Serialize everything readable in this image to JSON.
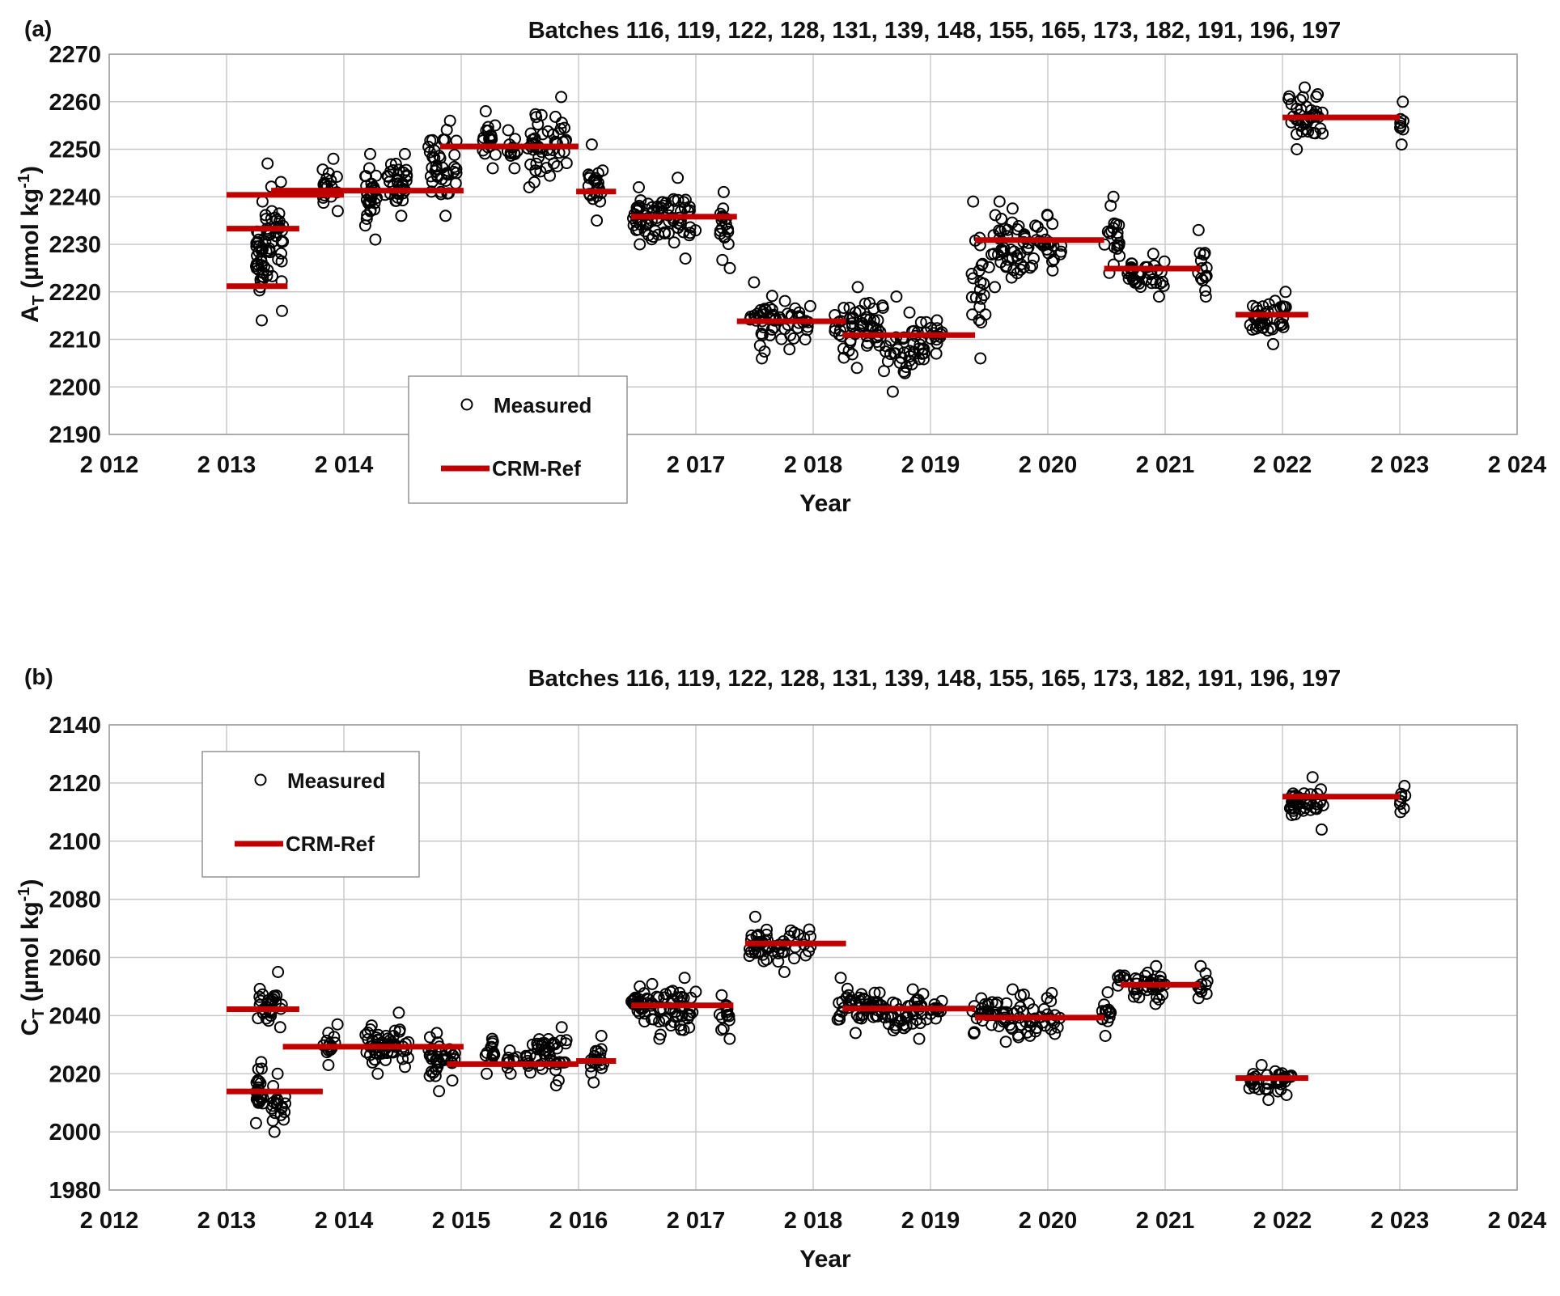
{
  "chart_data": [
    {
      "panel_label": "(a)",
      "type": "scatter",
      "title": "Batches 116, 119, 122, 128, 131, 139, 148, 155, 165, 173, 182, 191, 196, 197",
      "xlabel": "Year",
      "ylabel": "A",
      "ylabel_sub": "T",
      "ylabel_unit": " (µmol kg",
      "ylabel_sup": "-1",
      "ylabel_close": ")",
      "xlim": [
        2012,
        2024
      ],
      "ylim": [
        2190,
        2270
      ],
      "xticks": [
        2012,
        2013,
        2014,
        2015,
        2016,
        2017,
        2018,
        2019,
        2020,
        2021,
        2022,
        2023,
        2024
      ],
      "xtick_labels": [
        "2 012",
        "2 013",
        "2 014",
        "2 015",
        "2 016",
        "2 017",
        "2 018",
        "2 019",
        "2 020",
        "2 021",
        "2 022",
        "2 023",
        "2 024"
      ],
      "yticks": [
        2190,
        2200,
        2210,
        2220,
        2230,
        2240,
        2250,
        2260,
        2270
      ],
      "grid": true,
      "legend": {
        "position": "center-left",
        "items": [
          "Measured",
          "CRM-Ref"
        ]
      },
      "crm_ref": [
        {
          "x": [
            2013.0,
            2014.0
          ],
          "y": 2240.4
        },
        {
          "x": [
            2013.0,
            2013.62
          ],
          "y": 2233.3
        },
        {
          "x": [
            2013.0,
            2013.52
          ],
          "y": 2221.2
        },
        {
          "x": [
            2013.38,
            2015.02
          ],
          "y": 2241.3
        },
        {
          "x": [
            2014.82,
            2016.0
          ],
          "y": 2250.6
        },
        {
          "x": [
            2015.98,
            2016.32
          ],
          "y": 2241.1
        },
        {
          "x": [
            2016.45,
            2017.35
          ],
          "y": 2235.8
        },
        {
          "x": [
            2017.35,
            2018.28
          ],
          "y": 2213.8
        },
        {
          "x": [
            2018.25,
            2019.38
          ],
          "y": 2210.9
        },
        {
          "x": [
            2019.38,
            2020.48
          ],
          "y": 2230.9
        },
        {
          "x": [
            2020.48,
            2021.3
          ],
          "y": 2224.9
        },
        {
          "x": [
            2021.6,
            2022.22
          ],
          "y": 2215.2
        },
        {
          "x": [
            2022.0,
            2023.0
          ],
          "y": 2256.7
        }
      ],
      "measured_clusters": [
        {
          "x": [
            2013.25,
            2013.32
          ],
          "y": [
            2214,
            2239
          ],
          "n": 30
        },
        {
          "x": [
            2013.32,
            2013.48
          ],
          "y": [
            2216,
            2247
          ],
          "n": 40
        },
        {
          "x": [
            2013.82,
            2013.95
          ],
          "y": [
            2237,
            2248
          ],
          "n": 18
        },
        {
          "x": [
            2014.18,
            2014.28
          ],
          "y": [
            2231,
            2249
          ],
          "n": 30
        },
        {
          "x": [
            2014.35,
            2014.55
          ],
          "y": [
            2236,
            2249
          ],
          "n": 35
        },
        {
          "x": [
            2014.72,
            2014.96
          ],
          "y": [
            2236,
            2256
          ],
          "n": 40
        },
        {
          "x": [
            2015.18,
            2015.3
          ],
          "y": [
            2246,
            2258
          ],
          "n": 18
        },
        {
          "x": [
            2015.38,
            2015.48
          ],
          "y": [
            2246,
            2254
          ],
          "n": 12
        },
        {
          "x": [
            2015.55,
            2015.9
          ],
          "y": [
            2242,
            2261
          ],
          "n": 50
        },
        {
          "x": [
            2016.08,
            2016.22
          ],
          "y": [
            2235,
            2251
          ],
          "n": 22
        },
        {
          "x": [
            2016.45,
            2016.6
          ],
          "y": [
            2230,
            2242
          ],
          "n": 25
        },
        {
          "x": [
            2016.62,
            2017.0
          ],
          "y": [
            2227,
            2244
          ],
          "n": 50
        },
        {
          "x": [
            2017.2,
            2017.3
          ],
          "y": [
            2225,
            2241
          ],
          "n": 18
        },
        {
          "x": [
            2017.45,
            2017.85
          ],
          "y": [
            2206,
            2222
          ],
          "n": 45
        },
        {
          "x": [
            2017.85,
            2017.98
          ],
          "y": [
            2210,
            2217
          ],
          "n": 14
        },
        {
          "x": [
            2018.18,
            2018.6
          ],
          "y": [
            2204,
            2221
          ],
          "n": 55
        },
        {
          "x": [
            2018.6,
            2018.98
          ],
          "y": [
            2199,
            2219
          ],
          "n": 45
        },
        {
          "x": [
            2019.0,
            2019.1
          ],
          "y": [
            2207,
            2214
          ],
          "n": 12
        },
        {
          "x": [
            2019.35,
            2019.48
          ],
          "y": [
            2206,
            2239
          ],
          "n": 22
        },
        {
          "x": [
            2019.48,
            2020.12
          ],
          "y": [
            2221,
            2239
          ],
          "n": 75
        },
        {
          "x": [
            2020.45,
            2020.62
          ],
          "y": [
            2224,
            2240
          ],
          "n": 20
        },
        {
          "x": [
            2020.65,
            2021.0
          ],
          "y": [
            2219,
            2228
          ],
          "n": 40
        },
        {
          "x": [
            2021.28,
            2021.36
          ],
          "y": [
            2219,
            2233
          ],
          "n": 14
        },
        {
          "x": [
            2021.7,
            2022.05
          ],
          "y": [
            2209,
            2220
          ],
          "n": 40
        },
        {
          "x": [
            2022.05,
            2022.35
          ],
          "y": [
            2250,
            2263
          ],
          "n": 40
        },
        {
          "x": [
            2023.0,
            2023.05
          ],
          "y": [
            2251,
            2260
          ],
          "n": 8
        }
      ]
    },
    {
      "panel_label": "(b)",
      "type": "scatter",
      "title": "Batches 116, 119, 122, 128, 131, 139, 148, 155, 165, 173, 182, 191, 196, 197",
      "xlabel": "Year",
      "ylabel": "C",
      "ylabel_sub": "T",
      "ylabel_unit": " (µmol kg",
      "ylabel_sup": "-1",
      "ylabel_close": ")",
      "xlim": [
        2012,
        2024
      ],
      "ylim": [
        1980,
        2140
      ],
      "xticks": [
        2012,
        2013,
        2014,
        2015,
        2016,
        2017,
        2018,
        2019,
        2020,
        2021,
        2022,
        2023,
        2024
      ],
      "xtick_labels": [
        "2 012",
        "2 013",
        "2 014",
        "2 015",
        "2 016",
        "2 017",
        "2 018",
        "2 019",
        "2 020",
        "2 021",
        "2 022",
        "2 023",
        "2 024"
      ],
      "yticks": [
        1980,
        2000,
        2020,
        2040,
        2060,
        2080,
        2100,
        2120,
        2140
      ],
      "grid": true,
      "legend": {
        "position": "top-left",
        "items": [
          "Measured",
          "CRM-Ref"
        ]
      },
      "crm_ref": [
        {
          "x": [
            2013.0,
            2013.62
          ],
          "y": 2042.2
        },
        {
          "x": [
            2013.0,
            2013.82
          ],
          "y": 2013.9
        },
        {
          "x": [
            2013.48,
            2015.02
          ],
          "y": 2029.3
        },
        {
          "x": [
            2014.88,
            2016.0
          ],
          "y": 2023.3
        },
        {
          "x": [
            2015.98,
            2016.32
          ],
          "y": 2024.4
        },
        {
          "x": [
            2016.45,
            2017.32
          ],
          "y": 2043.5
        },
        {
          "x": [
            2017.42,
            2018.28
          ],
          "y": 2064.8
        },
        {
          "x": [
            2018.25,
            2019.38
          ],
          "y": 2042.4
        },
        {
          "x": [
            2019.38,
            2020.48
          ],
          "y": 2039.3
        },
        {
          "x": [
            2020.62,
            2021.3
          ],
          "y": 2050.6
        },
        {
          "x": [
            2021.6,
            2022.22
          ],
          "y": 2018.5
        },
        {
          "x": [
            2022.0,
            2023.0
          ],
          "y": 2115.3
        }
      ],
      "measured_clusters": [
        {
          "x": [
            2013.25,
            2013.32
          ],
          "y": [
            2003,
            2024
          ],
          "n": 25
        },
        {
          "x": [
            2013.25,
            2013.48
          ],
          "y": [
            2036,
            2055
          ],
          "n": 30
        },
        {
          "x": [
            2013.38,
            2013.5
          ],
          "y": [
            2000,
            2020
          ],
          "n": 20
        },
        {
          "x": [
            2013.82,
            2013.95
          ],
          "y": [
            2023,
            2037
          ],
          "n": 15
        },
        {
          "x": [
            2014.18,
            2014.55
          ],
          "y": [
            2020,
            2041
          ],
          "n": 55
        },
        {
          "x": [
            2014.72,
            2014.96
          ],
          "y": [
            2014,
            2034
          ],
          "n": 35
        },
        {
          "x": [
            2015.18,
            2015.3
          ],
          "y": [
            2020,
            2032
          ],
          "n": 14
        },
        {
          "x": [
            2015.38,
            2015.48
          ],
          "y": [
            2020,
            2028
          ],
          "n": 10
        },
        {
          "x": [
            2015.55,
            2015.9
          ],
          "y": [
            2016,
            2036
          ],
          "n": 45
        },
        {
          "x": [
            2016.08,
            2016.22
          ],
          "y": [
            2017,
            2033
          ],
          "n": 18
        },
        {
          "x": [
            2016.45,
            2016.6
          ],
          "y": [
            2038,
            2050
          ],
          "n": 25
        },
        {
          "x": [
            2016.62,
            2017.0
          ],
          "y": [
            2032,
            2053
          ],
          "n": 50
        },
        {
          "x": [
            2017.2,
            2017.3
          ],
          "y": [
            2032,
            2047
          ],
          "n": 15
        },
        {
          "x": [
            2017.45,
            2017.98
          ],
          "y": [
            2055,
            2074
          ],
          "n": 55
        },
        {
          "x": [
            2018.2,
            2018.6
          ],
          "y": [
            2034,
            2053
          ],
          "n": 50
        },
        {
          "x": [
            2018.6,
            2018.98
          ],
          "y": [
            2032,
            2049
          ],
          "n": 40
        },
        {
          "x": [
            2019.0,
            2019.1
          ],
          "y": [
            2039,
            2045
          ],
          "n": 10
        },
        {
          "x": [
            2019.35,
            2020.12
          ],
          "y": [
            2031,
            2049
          ],
          "n": 80
        },
        {
          "x": [
            2020.45,
            2020.55
          ],
          "y": [
            2033,
            2048
          ],
          "n": 15
        },
        {
          "x": [
            2020.58,
            2021.0
          ],
          "y": [
            2044,
            2057
          ],
          "n": 45
        },
        {
          "x": [
            2021.28,
            2021.36
          ],
          "y": [
            2046,
            2057
          ],
          "n": 12
        },
        {
          "x": [
            2021.7,
            2022.08
          ],
          "y": [
            2011,
            2023
          ],
          "n": 40
        },
        {
          "x": [
            2022.05,
            2022.35
          ],
          "y": [
            2104,
            2122
          ],
          "n": 40
        },
        {
          "x": [
            2023.0,
            2023.05
          ],
          "y": [
            2110,
            2119
          ],
          "n": 8
        }
      ]
    }
  ]
}
